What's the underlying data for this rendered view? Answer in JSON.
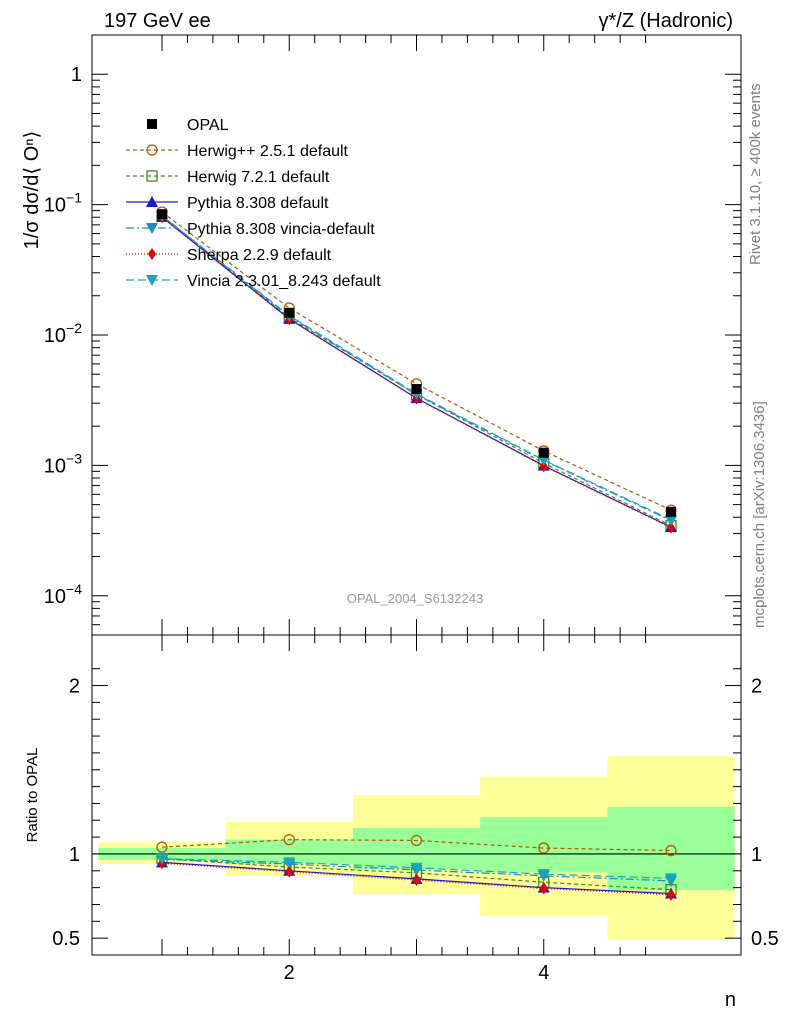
{
  "header": {
    "left_title": "197 GeV ee",
    "right_title": "γ*/Z (Hadronic)"
  },
  "side_labels": {
    "rivet": "Rivet 3.1.10, ≥ 400k events",
    "mcplots": "mcplots.cern.ch [arXiv:1306.3436]"
  },
  "watermark": "OPAL_2004_S6132243",
  "main_ylabel": "1/σ dσ/d⟨ Oⁿ⟩",
  "ratio_ylabel": "Ratio to OPAL",
  "xlabel": "n",
  "main_yticks": [
    {
      "base": "1",
      "exp": "",
      "value": 1
    },
    {
      "base": "10",
      "exp": "−1",
      "value": 0.1
    },
    {
      "base": "10",
      "exp": "−2",
      "value": 0.01
    },
    {
      "base": "10",
      "exp": "−3",
      "value": 0.001
    },
    {
      "base": "10",
      "exp": "−4",
      "value": 0.0001
    }
  ],
  "ratio_yticks": [
    "0.5",
    "1",
    "2"
  ],
  "xticks": [
    "2",
    "4"
  ],
  "chart_data": {
    "type": "line",
    "x": [
      1,
      2,
      3,
      4,
      5
    ],
    "xlim": [
      0.45,
      5.55
    ],
    "main_ylim": [
      5e-05,
      2
    ],
    "main_yscale": "log",
    "ratio_ylim": [
      0.4,
      2.3
    ],
    "legend_position": "top-left",
    "data": {
      "name": "OPAL",
      "values": [
        0.0845,
        0.0148,
        0.00385,
        0.00125,
        0.00044
      ],
      "bin_edges": [
        0.5,
        1.5,
        2.5,
        3.5,
        4.5,
        5.5
      ],
      "band_inner": [
        [
          0.965,
          1.035
        ],
        [
          0.94,
          1.085
        ],
        [
          0.91,
          1.155
        ],
        [
          0.89,
          1.22
        ],
        [
          0.785,
          1.28
        ]
      ],
      "band_outer": [
        [
          0.94,
          1.07
        ],
        [
          0.87,
          1.19
        ],
        [
          0.76,
          1.35
        ],
        [
          0.63,
          1.46
        ],
        [
          0.49,
          1.58
        ]
      ]
    },
    "series": [
      {
        "name": "Herwig++ 2.5.1 default",
        "color": "#b35900",
        "dash": "4,3",
        "marker": "circle-open",
        "values": [
          0.0878,
          0.0161,
          0.00422,
          0.00129,
          0.000454
        ],
        "ratio": [
          1.04,
          1.085,
          1.08,
          1.035,
          1.02
        ]
      },
      {
        "name": "Herwig 7.2.1 default",
        "color": "#3d8c1f",
        "dash": "4,3",
        "marker": "square-open",
        "values": [
          0.0822,
          0.0136,
          0.00349,
          0.00104,
          0.000345
        ],
        "ratio": [
          0.972,
          0.922,
          0.888,
          0.832,
          0.788
        ]
      },
      {
        "name": "Pythia 8.308 default",
        "color": "#1a1acc",
        "dash": "",
        "marker": "triangle-up",
        "values": [
          0.0803,
          0.0133,
          0.00328,
          0.000995,
          0.000336
        ],
        "ratio": [
          0.95,
          0.9,
          0.852,
          0.8,
          0.765
        ]
      },
      {
        "name": "Pythia 8.308 vincia-default",
        "color": "#1a8fb3",
        "dash": "8,3,2,3",
        "marker": "triangle-down",
        "values": [
          0.0818,
          0.0139,
          0.00349,
          0.00109,
          0.000376
        ],
        "ratio": [
          0.968,
          0.94,
          0.905,
          0.87,
          0.84
        ]
      },
      {
        "name": "Sherpa 2.2.9 default",
        "color": "#e60000",
        "dash": "1,2",
        "marker": "diamond",
        "values": [
          0.0798,
          0.0132,
          0.00326,
          0.000985,
          0.000333
        ],
        "ratio": [
          0.945,
          0.895,
          0.845,
          0.795,
          0.758
        ]
      },
      {
        "name": "Vincia 2.3.01_8.243 default",
        "color": "#1aa3bf",
        "dash": "8,4",
        "marker": "triangle-down",
        "values": [
          0.0822,
          0.0141,
          0.00354,
          0.0011,
          0.000383
        ],
        "ratio": [
          0.972,
          0.95,
          0.918,
          0.88,
          0.855
        ]
      }
    ]
  }
}
